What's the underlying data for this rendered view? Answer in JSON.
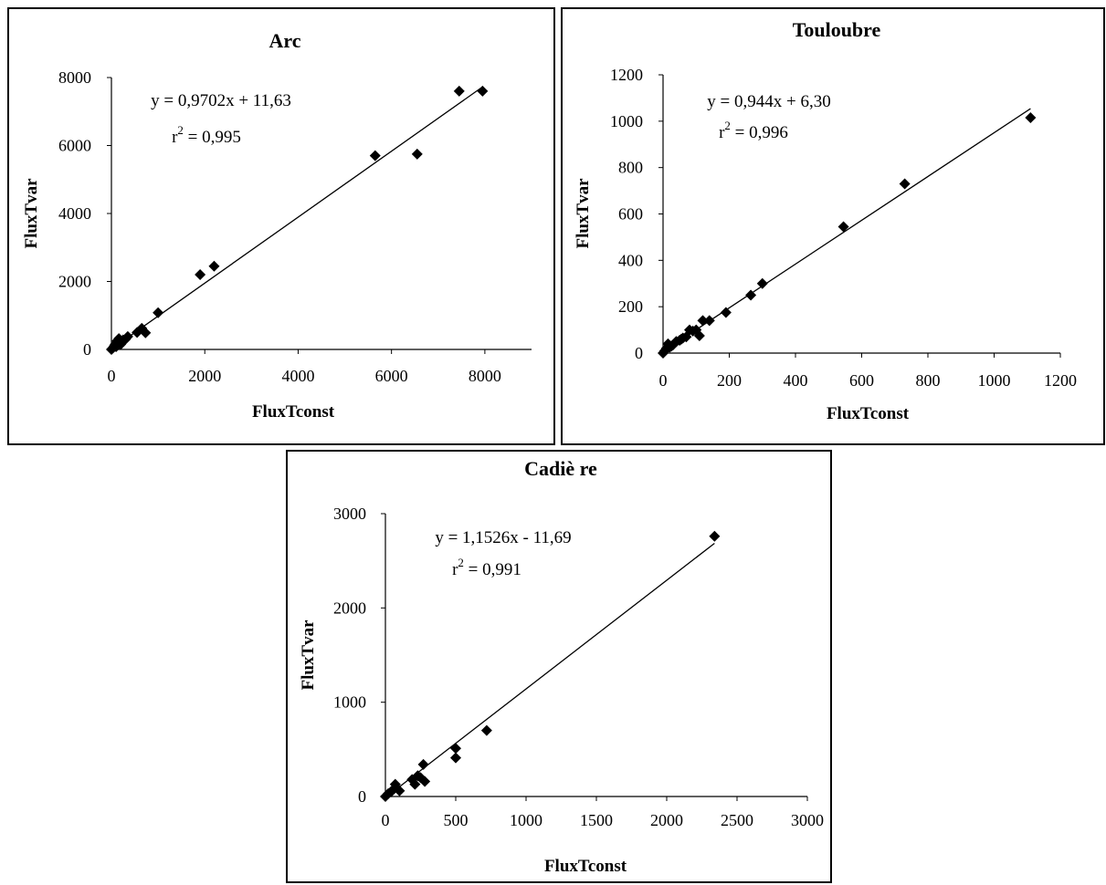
{
  "chart_data": [
    {
      "type": "scatter",
      "title": "Arc",
      "xlabel": "FluxTconst",
      "ylabel": "FluxTvar",
      "xlim": [
        0,
        9000
      ],
      "ylim": [
        0,
        8000
      ],
      "xticks": [
        "0",
        "2000",
        "4000",
        "6000",
        "8000"
      ],
      "yticks": [
        "0",
        "2000",
        "4000",
        "6000",
        "8000"
      ],
      "equation": "y = 0,9702x + 11,63",
      "r2_prefix": "r",
      "r2_exp": "2",
      "r2_value": " = 0,995",
      "trendline": {
        "slope": 0.9702,
        "intercept": 11.63,
        "x_range": [
          0,
          7950
        ]
      },
      "points": [
        {
          "x": 0,
          "y": 0
        },
        {
          "x": 30,
          "y": 40
        },
        {
          "x": 60,
          "y": 100
        },
        {
          "x": 80,
          "y": 150
        },
        {
          "x": 100,
          "y": 80
        },
        {
          "x": 120,
          "y": 250
        },
        {
          "x": 150,
          "y": 200
        },
        {
          "x": 160,
          "y": 320
        },
        {
          "x": 200,
          "y": 150
        },
        {
          "x": 250,
          "y": 280
        },
        {
          "x": 300,
          "y": 300
        },
        {
          "x": 350,
          "y": 380
        },
        {
          "x": 550,
          "y": 500
        },
        {
          "x": 650,
          "y": 620
        },
        {
          "x": 730,
          "y": 490
        },
        {
          "x": 1000,
          "y": 1080
        },
        {
          "x": 1900,
          "y": 2200
        },
        {
          "x": 2200,
          "y": 2450
        },
        {
          "x": 5650,
          "y": 5700
        },
        {
          "x": 6550,
          "y": 5750
        },
        {
          "x": 7450,
          "y": 7600
        },
        {
          "x": 7950,
          "y": 7600
        }
      ]
    },
    {
      "type": "scatter",
      "title": "Touloubre",
      "xlabel": "FluxTconst",
      "ylabel": "FluxTvar",
      "xlim": [
        0,
        1200
      ],
      "ylim": [
        0,
        1200
      ],
      "xticks": [
        "0",
        "200",
        "400",
        "600",
        "800",
        "1000",
        "1200"
      ],
      "yticks": [
        "0",
        "200",
        "400",
        "600",
        "800",
        "1000",
        "1200"
      ],
      "equation": "y = 0,944x + 6,30",
      "r2_prefix": "r",
      "r2_exp": "2",
      "r2_value": " = 0,996",
      "trendline": {
        "slope": 0.944,
        "intercept": 6.3,
        "x_range": [
          0,
          1110
        ]
      },
      "points": [
        {
          "x": 0,
          "y": 0
        },
        {
          "x": 5,
          "y": 10
        },
        {
          "x": 10,
          "y": 20
        },
        {
          "x": 15,
          "y": 40
        },
        {
          "x": 20,
          "y": 25
        },
        {
          "x": 25,
          "y": 30
        },
        {
          "x": 30,
          "y": 35
        },
        {
          "x": 40,
          "y": 50
        },
        {
          "x": 50,
          "y": 55
        },
        {
          "x": 55,
          "y": 60
        },
        {
          "x": 60,
          "y": 65
        },
        {
          "x": 70,
          "y": 70
        },
        {
          "x": 80,
          "y": 100
        },
        {
          "x": 90,
          "y": 95
        },
        {
          "x": 100,
          "y": 100
        },
        {
          "x": 110,
          "y": 75
        },
        {
          "x": 120,
          "y": 140
        },
        {
          "x": 140,
          "y": 140
        },
        {
          "x": 190,
          "y": 175
        },
        {
          "x": 265,
          "y": 250
        },
        {
          "x": 300,
          "y": 300
        },
        {
          "x": 545,
          "y": 545
        },
        {
          "x": 730,
          "y": 730
        },
        {
          "x": 1110,
          "y": 1015
        }
      ]
    },
    {
      "type": "scatter",
      "title": "Cadiè re",
      "xlabel": "FluxTconst",
      "ylabel": "FluxTvar",
      "xlim": [
        0,
        3000
      ],
      "ylim": [
        0,
        3000
      ],
      "xticks": [
        "0",
        "500",
        "1000",
        "1500",
        "2000",
        "2500",
        "3000"
      ],
      "yticks": [
        "0",
        "1000",
        "2000",
        "3000"
      ],
      "equation": "y = 1,1526x - 11,69",
      "r2_prefix": "r",
      "r2_exp": "2",
      "r2_value": " = 0,991",
      "trendline": {
        "slope": 1.1526,
        "intercept": -11.69,
        "x_range": [
          0,
          2340
        ]
      },
      "points": [
        {
          "x": 0,
          "y": 0
        },
        {
          "x": 20,
          "y": 30
        },
        {
          "x": 40,
          "y": 50
        },
        {
          "x": 60,
          "y": 80
        },
        {
          "x": 70,
          "y": 130
        },
        {
          "x": 100,
          "y": 60
        },
        {
          "x": 190,
          "y": 180
        },
        {
          "x": 210,
          "y": 130
        },
        {
          "x": 230,
          "y": 220
        },
        {
          "x": 250,
          "y": 200
        },
        {
          "x": 270,
          "y": 340
        },
        {
          "x": 280,
          "y": 160
        },
        {
          "x": 500,
          "y": 510
        },
        {
          "x": 500,
          "y": 410
        },
        {
          "x": 720,
          "y": 700
        },
        {
          "x": 2340,
          "y": 2760
        }
      ]
    }
  ]
}
